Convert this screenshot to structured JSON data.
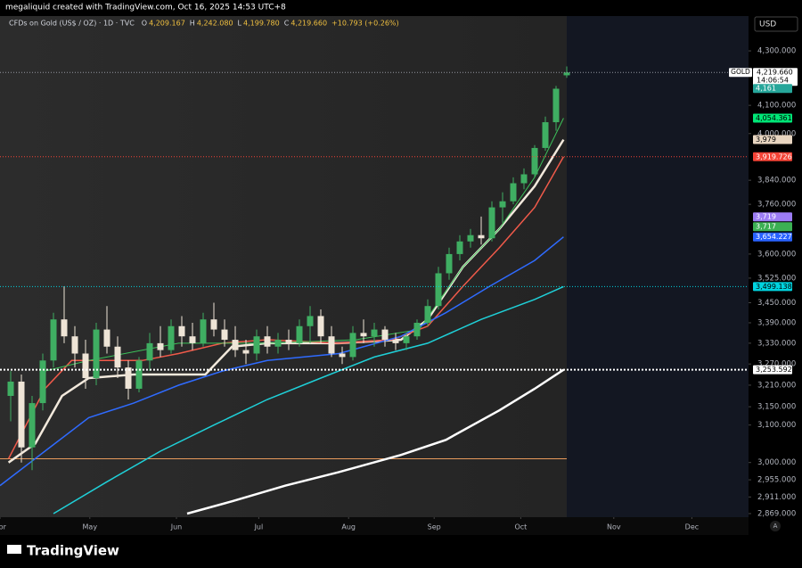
{
  "header": {
    "credit": "megaliquid created with TradingView.com, Oct 16, 2025 14:53 UTC+8",
    "symbol": "CFDs on Gold (US$ / OZ) · 1D · TVC",
    "ohlc": [
      {
        "key": "O",
        "value": "4,209.167"
      },
      {
        "key": "H",
        "value": "4,242.080"
      },
      {
        "key": "L",
        "value": "4,199.780"
      },
      {
        "key": "C",
        "value": "4,219.660"
      }
    ],
    "change": "+10.793 (+0.26%)"
  },
  "currency": "USD",
  "logo": "TradingView",
  "auto": "A",
  "chart_data": {
    "type": "candlestick",
    "log_scale": true,
    "up_color": "#3fae62",
    "down_color": "#eee4d6",
    "xlim": [
      -1,
      69
    ],
    "ylim": [
      2860,
      4433
    ],
    "xticks": [
      {
        "value": -1,
        "label": "Apr"
      },
      {
        "value": 7.4,
        "label": "May"
      },
      {
        "value": 15.5,
        "label": "Jun"
      },
      {
        "value": 23.2,
        "label": "Jul"
      },
      {
        "value": 31.6,
        "label": "Aug"
      },
      {
        "value": 39.6,
        "label": "Sep"
      },
      {
        "value": 47.7,
        "label": "Oct"
      },
      {
        "value": 56.4,
        "label": "Nov"
      },
      {
        "value": 63.7,
        "label": "Dec"
      }
    ],
    "yticks": [
      {
        "value": 4300,
        "label": "4,300.000"
      },
      {
        "value": 4100,
        "label": "4,100.000"
      },
      {
        "value": 4000,
        "label": "4,000.000"
      },
      {
        "value": 3840,
        "label": "3,840.000"
      },
      {
        "value": 3760,
        "label": "3,760.000"
      },
      {
        "value": 3600,
        "label": "3,600.000"
      },
      {
        "value": 3525,
        "label": "3,525.000"
      },
      {
        "value": 3450,
        "label": "3,450.000"
      },
      {
        "value": 3390,
        "label": "3,390.000"
      },
      {
        "value": 3330,
        "label": "3,330.000"
      },
      {
        "value": 3270,
        "label": "3,270.000"
      },
      {
        "value": 3210,
        "label": "3,210.000"
      },
      {
        "value": 3150,
        "label": "3,150.000"
      },
      {
        "value": 3100,
        "label": "3,100.000"
      },
      {
        "value": 3000,
        "label": "3,000.000"
      },
      {
        "value": 2955,
        "label": "2,955.000"
      },
      {
        "value": 2911,
        "label": "2,911.000"
      },
      {
        "value": 2869,
        "label": "2,869.000"
      }
    ],
    "x": [
      0,
      1,
      2,
      3,
      4,
      5,
      6,
      7,
      8,
      9,
      10,
      11,
      12,
      13,
      14,
      15,
      16,
      17,
      18,
      19,
      20,
      21,
      22,
      23,
      24,
      25,
      26,
      27,
      28,
      29,
      30,
      31,
      32,
      33,
      34,
      35,
      36,
      37,
      38,
      39,
      40,
      41,
      42,
      43,
      44,
      45,
      46,
      47,
      48,
      49,
      50,
      51,
      52
    ],
    "candles": [
      [
        3180,
        3250,
        3110,
        3220
      ],
      [
        3220,
        3240,
        3000,
        3040
      ],
      [
        3040,
        3180,
        2980,
        3160
      ],
      [
        3160,
        3300,
        3140,
        3280
      ],
      [
        3280,
        3420,
        3260,
        3400
      ],
      [
        3400,
        3500,
        3330,
        3350
      ],
      [
        3350,
        3380,
        3260,
        3300
      ],
      [
        3300,
        3340,
        3200,
        3230
      ],
      [
        3230,
        3390,
        3210,
        3370
      ],
      [
        3370,
        3440,
        3300,
        3320
      ],
      [
        3320,
        3350,
        3230,
        3260
      ],
      [
        3260,
        3280,
        3170,
        3200
      ],
      [
        3200,
        3290,
        3190,
        3280
      ],
      [
        3280,
        3360,
        3250,
        3330
      ],
      [
        3330,
        3380,
        3290,
        3310
      ],
      [
        3310,
        3400,
        3300,
        3380
      ],
      [
        3380,
        3410,
        3320,
        3350
      ],
      [
        3350,
        3390,
        3310,
        3330
      ],
      [
        3330,
        3420,
        3320,
        3400
      ],
      [
        3400,
        3450,
        3350,
        3370
      ],
      [
        3370,
        3400,
        3320,
        3340
      ],
      [
        3340,
        3380,
        3290,
        3310
      ],
      [
        3310,
        3340,
        3270,
        3300
      ],
      [
        3300,
        3370,
        3280,
        3350
      ],
      [
        3350,
        3380,
        3300,
        3320
      ],
      [
        3320,
        3360,
        3300,
        3340
      ],
      [
        3340,
        3370,
        3310,
        3330
      ],
      [
        3330,
        3400,
        3320,
        3380
      ],
      [
        3380,
        3440,
        3330,
        3410
      ],
      [
        3410,
        3430,
        3330,
        3350
      ],
      [
        3350,
        3380,
        3290,
        3300
      ],
      [
        3300,
        3320,
        3270,
        3290
      ],
      [
        3290,
        3380,
        3280,
        3360
      ],
      [
        3360,
        3400,
        3330,
        3350
      ],
      [
        3350,
        3390,
        3320,
        3370
      ],
      [
        3370,
        3380,
        3320,
        3340
      ],
      [
        3340,
        3360,
        3310,
        3330
      ],
      [
        3330,
        3360,
        3310,
        3350
      ],
      [
        3350,
        3400,
        3340,
        3390
      ],
      [
        3390,
        3460,
        3380,
        3440
      ],
      [
        3440,
        3560,
        3430,
        3540
      ],
      [
        3540,
        3620,
        3520,
        3600
      ],
      [
        3600,
        3660,
        3580,
        3640
      ],
      [
        3640,
        3680,
        3620,
        3660
      ],
      [
        3660,
        3720,
        3630,
        3650
      ],
      [
        3650,
        3770,
        3640,
        3750
      ],
      [
        3750,
        3800,
        3700,
        3770
      ],
      [
        3770,
        3850,
        3760,
        3830
      ],
      [
        3830,
        3880,
        3810,
        3860
      ],
      [
        3860,
        3960,
        3850,
        3950
      ],
      [
        3950,
        4060,
        3940,
        4040
      ],
      [
        4040,
        4170,
        4010,
        4160
      ],
      [
        4209.167,
        4242.08,
        4199.78,
        4219.66
      ]
    ],
    "overlays": [
      {
        "color": "#f2e9dc",
        "width": 2.5,
        "x": [
          -0.2,
          2.3,
          4.8,
          7.3,
          11.5,
          15.7,
          18.2,
          20.7,
          24,
          30.7,
          36.5,
          39,
          42.3,
          45.7,
          49,
          51.7
        ],
        "values": [
          3000,
          3050,
          3180,
          3230,
          3240,
          3240,
          3240,
          3320,
          3330,
          3330,
          3340,
          3400,
          3560,
          3680,
          3820,
          3979
        ]
      },
      {
        "color": "#f05a4a",
        "width": 1.5,
        "x": [
          -0.2,
          3.2,
          5.7,
          9,
          12.3,
          15.7,
          19.8,
          24,
          30.7,
          35.7,
          39,
          42.3,
          45.7,
          49,
          51.7
        ],
        "values": [
          3010,
          3200,
          3280,
          3280,
          3280,
          3300,
          3330,
          3340,
          3330,
          3340,
          3380,
          3500,
          3620,
          3750,
          3919.726
        ]
      },
      {
        "color": "#3cc35a",
        "width": 1,
        "x": [
          3.2,
          7.3,
          15.7,
          24,
          32.3,
          38.2,
          42.3,
          45.7,
          49,
          51.7
        ],
        "values": [
          3250,
          3280,
          3330,
          3330,
          3340,
          3370,
          3560,
          3680,
          3850,
          4054.361
        ]
      },
      {
        "color": "#2f6bff",
        "width": 1.5,
        "x": [
          -1,
          3.2,
          7.3,
          11.5,
          15.7,
          19.8,
          24,
          30.7,
          36.5,
          40.7,
          44.8,
          49,
          51.7
        ],
        "values": [
          2940,
          3030,
          3120,
          3160,
          3210,
          3250,
          3280,
          3300,
          3350,
          3420,
          3500,
          3580,
          3654.227
        ]
      },
      {
        "color": "#1fd0d8",
        "width": 1.5,
        "x": [
          4,
          9,
          14,
          19,
          24,
          29,
          34,
          39,
          44,
          49,
          51.7
        ],
        "values": [
          2869,
          2950,
          3030,
          3100,
          3170,
          3230,
          3290,
          3330,
          3400,
          3460,
          3499.138
        ]
      },
      {
        "color": "#ffffff",
        "width": 2.5,
        "x": [
          16.5,
          20.7,
          25.7,
          30.7,
          36.5,
          40.7,
          45.7,
          49,
          51.7
        ],
        "values": [
          2869,
          2900,
          2940,
          2975,
          3020,
          3060,
          3140,
          3200,
          3253.592
        ]
      }
    ],
    "levels": [
      {
        "value": 3010,
        "color": "#e89a5c"
      }
    ],
    "last_price": {
      "symbol": "GOLD",
      "value": 4219.66,
      "label": "4,219.660",
      "countdown": "14:06:54",
      "color": "#9598a1"
    },
    "price_labels": [
      {
        "value": 4161,
        "label": "4,161",
        "color": "#26a69a",
        "text_color": "#ffffff"
      },
      {
        "value": 4054.361,
        "label": "4,054.361",
        "color": "#00e676",
        "text_color": "#000000"
      },
      {
        "value": 3979,
        "label": "3,979",
        "color": "#e8d5c0",
        "text_color": "#000000"
      },
      {
        "value": 3919.726,
        "label": "3,919.726",
        "color": "#f44336",
        "text_color": "#ffffff",
        "line": "dotted"
      },
      {
        "value": 3719,
        "label": "3,719",
        "color": "#9c7cf4",
        "text_color": "#ffffff"
      },
      {
        "value": 3717,
        "label": "3,717",
        "color": "#3cb054",
        "text_color": "#ffffff"
      },
      {
        "value": 3654.227,
        "label": "3,654.227",
        "color": "#2962ff",
        "text_color": "#ffffff"
      },
      {
        "value": 3499.138,
        "label": "3,499.138",
        "color": "#00d4e0",
        "text_color": "#000000",
        "line": "dotted"
      },
      {
        "value": 3253.592,
        "label": "3,253.592",
        "color": "#ffffff",
        "text_color": "#000000",
        "line": "heavy"
      }
    ]
  }
}
